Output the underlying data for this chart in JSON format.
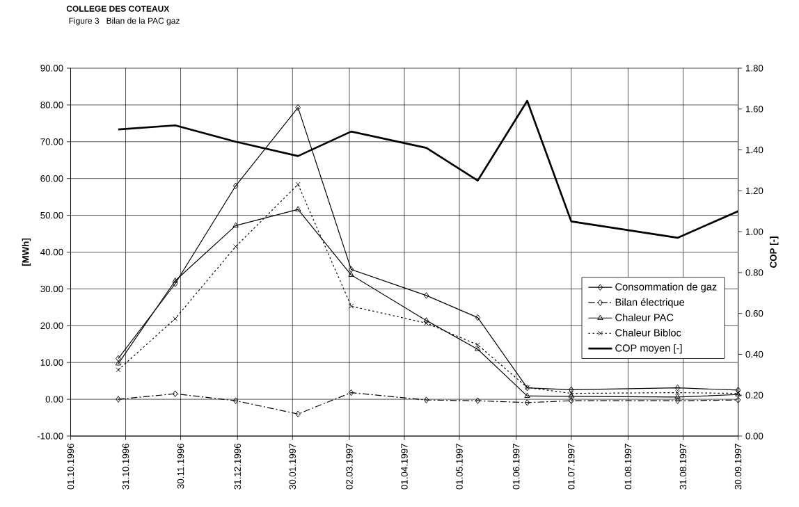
{
  "chart_data": {
    "type": "line",
    "title": "COLLEGE DES COTEAUX",
    "subtitle": "Figure 3   Bilan de la PAC gaz",
    "ylabel": "[MWh]",
    "y2label": "COP [-]",
    "x": [
      "1996-10-27",
      "1996-11-27",
      "1996-12-30",
      "1997-02-02",
      "1997-03-03",
      "1997-04-13",
      "1997-05-11",
      "1997-06-07",
      "1997-07-01",
      "1997-08-28",
      "1997-09-30"
    ],
    "series": [
      {
        "name": "Consommation de gaz",
        "color": "#000000",
        "marker": "diamond",
        "line_style": "solid",
        "values": [
          11.1,
          31.4,
          58.0,
          79.3,
          35.3,
          28.2,
          22.2,
          3.1,
          2.6,
          3.1,
          2.5
        ]
      },
      {
        "name": "Bilan électrique",
        "color": "#000000",
        "marker": "diamond",
        "line_style": "dashed",
        "values": [
          0.0,
          1.5,
          -0.4,
          -4.0,
          1.8,
          -0.2,
          -0.4,
          -0.9,
          -0.4,
          -0.4,
          -0.2
        ]
      },
      {
        "name": "Chaleur PAC",
        "color": "#000000",
        "marker": "triangle",
        "line_style": "solid",
        "values": [
          9.7,
          32.2,
          47.2,
          51.6,
          33.8,
          21.4,
          13.6,
          0.9,
          0.8,
          0.6,
          1.3
        ]
      },
      {
        "name": "Chaleur Bibloc",
        "color": "#000000",
        "marker": "cross",
        "line_style": "dotted",
        "values": [
          8.0,
          21.9,
          41.5,
          58.4,
          25.3,
          20.7,
          14.8,
          3.2,
          1.6,
          1.8,
          1.6
        ]
      },
      {
        "name": "COP moyen [-]",
        "color": "#000000",
        "marker": "none",
        "line_style": "solid",
        "axis": "y2",
        "values": [
          1.5,
          1.52,
          1.44,
          1.37,
          1.49,
          1.41,
          1.25,
          1.64,
          1.05,
          0.97,
          1.1
        ]
      }
    ],
    "xlim": [
      "1996-10-01",
      "1997-09-30"
    ],
    "xticks": [
      {
        "value": "1996-10-01",
        "label": "01.10.1996"
      },
      {
        "value": "1996-10-31",
        "label": "31.10.1996"
      },
      {
        "value": "1996-11-30",
        "label": "30.11.1996"
      },
      {
        "value": "1996-12-31",
        "label": "31.12.1996"
      },
      {
        "value": "1997-01-30",
        "label": "30.01.1997"
      },
      {
        "value": "1997-03-02",
        "label": "02.03.1997"
      },
      {
        "value": "1997-04-01",
        "label": "01.04.1997"
      },
      {
        "value": "1997-05-01",
        "label": "01.05.1997"
      },
      {
        "value": "1997-06-01",
        "label": "01.06.1997"
      },
      {
        "value": "1997-07-01",
        "label": "01.07.1997"
      },
      {
        "value": "1997-08-01",
        "label": "01.08.1997"
      },
      {
        "value": "1997-08-31",
        "label": "31.08.1997"
      },
      {
        "value": "1997-09-30",
        "label": "30.09.1997"
      }
    ],
    "ylim": [
      -10,
      90
    ],
    "yticks": [
      {
        "value": -10,
        "label": "-10.00"
      },
      {
        "value": 0,
        "label": "0.00"
      },
      {
        "value": 10,
        "label": "10.00"
      },
      {
        "value": 20,
        "label": "20.00"
      },
      {
        "value": 30,
        "label": "30.00"
      },
      {
        "value": 40,
        "label": "40.00"
      },
      {
        "value": 50,
        "label": "50.00"
      },
      {
        "value": 60,
        "label": "60.00"
      },
      {
        "value": 70,
        "label": "70.00"
      },
      {
        "value": 80,
        "label": "80.00"
      },
      {
        "value": 90,
        "label": "90.00"
      }
    ],
    "y2lim": [
      0,
      1.8
    ],
    "y2ticks": [
      {
        "value": 0,
        "label": "0.00"
      },
      {
        "value": 0.2,
        "label": "0.20"
      },
      {
        "value": 0.4,
        "label": "0.40"
      },
      {
        "value": 0.6,
        "label": "0.60"
      },
      {
        "value": 0.8,
        "label": "0.80"
      },
      {
        "value": 1.0,
        "label": "1.00"
      },
      {
        "value": 1.2,
        "label": "1.20"
      },
      {
        "value": 1.4,
        "label": "1.40"
      },
      {
        "value": 1.6,
        "label": "1.60"
      },
      {
        "value": 1.8,
        "label": "1.80"
      }
    ],
    "grid": true,
    "legend": "right"
  }
}
